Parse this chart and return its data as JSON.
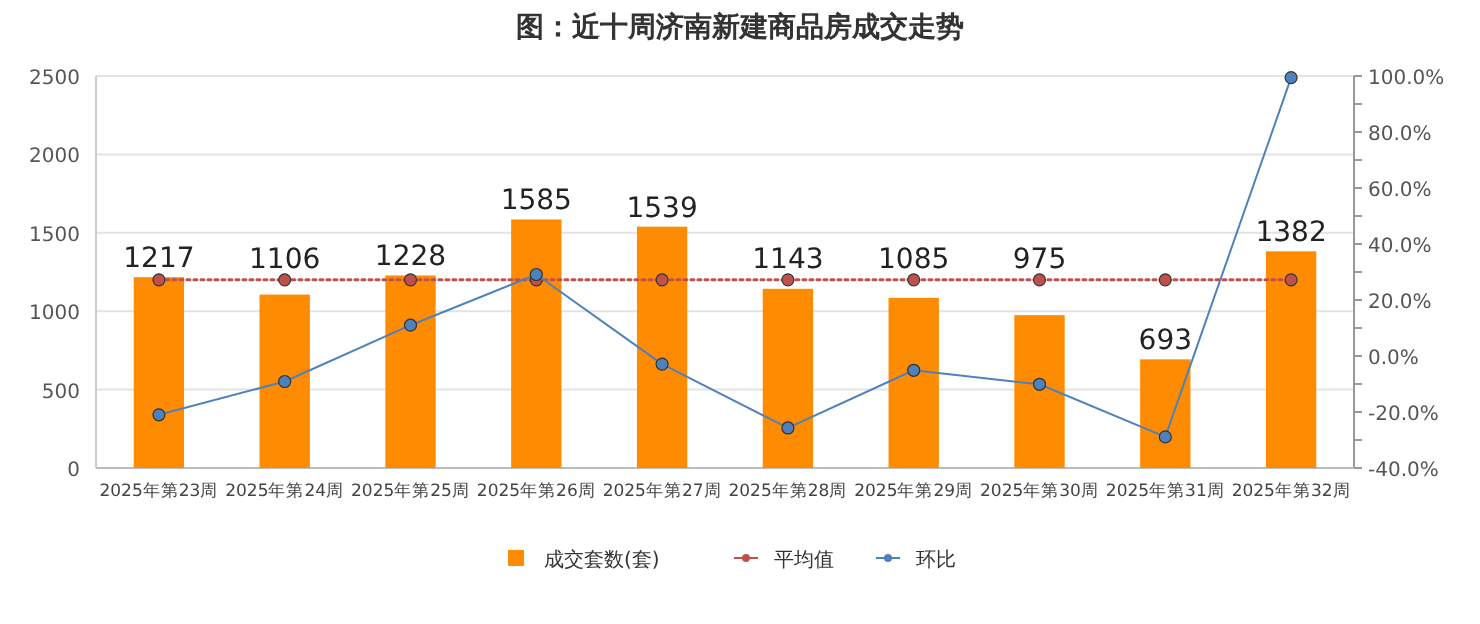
{
  "chart_data": {
    "type": "bar",
    "title": "图：近十周济南新建商品房成交走势",
    "categories": [
      "2025年第23周",
      "2025年第24周",
      "2025年第25周",
      "2025年第26周",
      "2025年第27周",
      "2025年第28周",
      "2025年第29周",
      "2025年第30周",
      "2025年第31周",
      "2025年第32周"
    ],
    "series": [
      {
        "name": "成交套数(套)",
        "color": "#ff8c00",
        "values": [
          1217,
          1106,
          1228,
          1585,
          1539,
          1143,
          1085,
          975,
          693,
          1382
        ],
        "value_labels": [
          "1217",
          "1106",
          "1228",
          "1585",
          "1539",
          "1143",
          "1085",
          "975",
          "693",
          "1382"
        ]
      },
      {
        "name": "平均值",
        "type": "line",
        "color": "#c0504d",
        "line_style": "dotted",
        "values": [
          1200,
          1200,
          1200,
          1200,
          1200,
          1200,
          1200,
          1200,
          1200,
          1200
        ]
      },
      {
        "name": "环比",
        "type": "line",
        "color": "#4f81bd",
        "line_style": "solid",
        "axis": "y2",
        "values": [
          -21,
          -9.1,
          11.0,
          29.1,
          -2.9,
          -25.7,
          -5.1,
          -10.1,
          -28.9,
          99.4
        ]
      }
    ],
    "ylim": [
      0,
      2500
    ],
    "yticks": [
      0,
      500,
      1000,
      1500,
      2000,
      2500
    ],
    "y2lim": [
      -40,
      100
    ],
    "y2ticks": [
      {
        "value": -40,
        "label": "-40.0%"
      },
      {
        "value": -30,
        "label": null
      },
      {
        "value": -20,
        "label": "-20.0%"
      },
      {
        "value": -10,
        "label": null
      },
      {
        "value": 0,
        "label": "0.0%"
      },
      {
        "value": 10,
        "label": null
      },
      {
        "value": 20,
        "label": "20.0%"
      },
      {
        "value": 30,
        "label": null
      },
      {
        "value": 40,
        "label": "40.0%"
      },
      {
        "value": 50,
        "label": null
      },
      {
        "value": 60,
        "label": "60.0%"
      },
      {
        "value": 70,
        "label": null
      },
      {
        "value": 80,
        "label": "80.0%"
      },
      {
        "value": 90,
        "label": null
      },
      {
        "value": 100,
        "label": "100.0%"
      }
    ],
    "grid": "y",
    "legend": "bottom",
    "marker": "circle"
  }
}
